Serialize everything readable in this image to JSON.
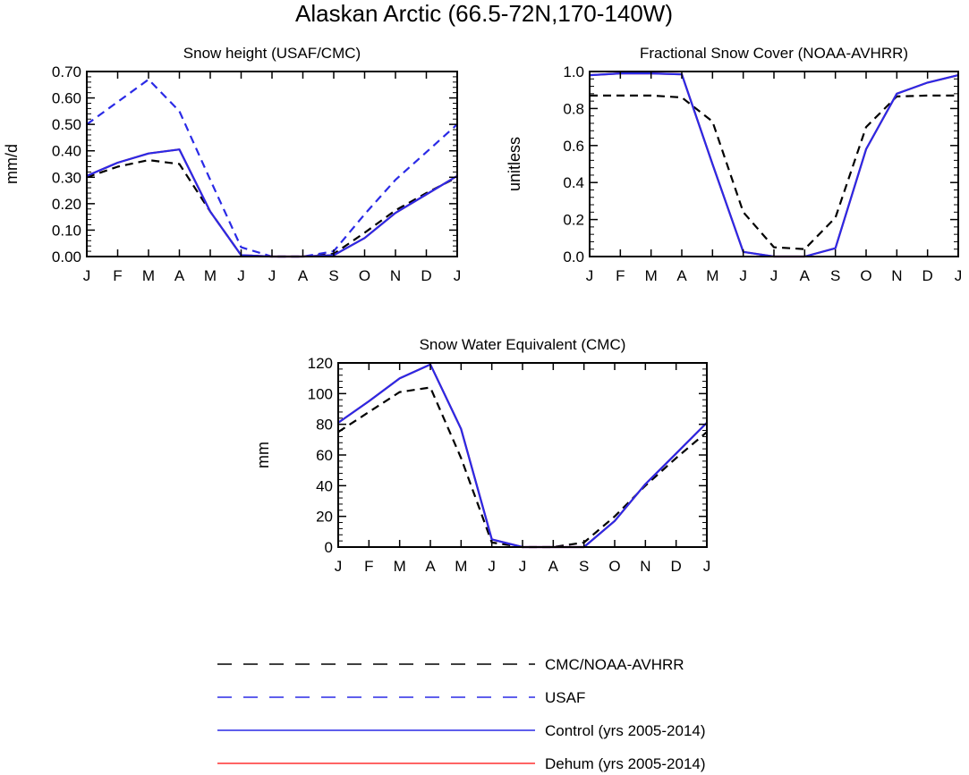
{
  "figure": {
    "title": "Alaskan Arctic (66.5-72N,170-140W)"
  },
  "chart_data": [
    {
      "type": "line",
      "title": "Snow height (USAF/CMC)",
      "ylabel": "mm/d",
      "categories": [
        "J",
        "F",
        "M",
        "A",
        "M",
        "J",
        "J",
        "A",
        "S",
        "O",
        "N",
        "D",
        "J"
      ],
      "ylim": [
        0,
        0.7
      ],
      "yticks": [
        0,
        0.1,
        0.2,
        0.3,
        0.4,
        0.5,
        0.6,
        0.7
      ],
      "ytick_labels": [
        "0.00",
        "0.10",
        "0.20",
        "0.30",
        "0.40",
        "0.50",
        "0.60",
        "0.70"
      ],
      "series": [
        {
          "name": "CMC/NOAA-AVHRR",
          "color": "#000000",
          "dash": true,
          "values": [
            0.3,
            0.34,
            0.365,
            0.35,
            0.17,
            0.005,
            0.0,
            0.0,
            0.01,
            0.09,
            0.175,
            0.24,
            0.3
          ]
        },
        {
          "name": "USAF",
          "color": "#2a2ae6",
          "dash": true,
          "values": [
            0.5,
            0.585,
            0.67,
            0.55,
            0.29,
            0.035,
            0.0,
            0.0,
            0.02,
            0.16,
            0.29,
            0.395,
            0.5
          ]
        },
        {
          "name": "Dehum (yrs 2005-2014)",
          "color": "#ff3030",
          "dash": false,
          "values": [
            0.305,
            0.355,
            0.39,
            0.405,
            0.17,
            0.005,
            0.0,
            0.0,
            0.005,
            0.07,
            0.165,
            0.235,
            0.305
          ]
        },
        {
          "name": "Control (yrs 2005-2014)",
          "color": "#2a2ae6",
          "dash": false,
          "values": [
            0.305,
            0.355,
            0.39,
            0.405,
            0.17,
            0.005,
            0.0,
            0.0,
            0.005,
            0.07,
            0.165,
            0.235,
            0.305
          ]
        }
      ]
    },
    {
      "type": "line",
      "title": "Fractional Snow Cover (NOAA-AVHRR)",
      "ylabel": "unitless",
      "categories": [
        "J",
        "F",
        "M",
        "A",
        "M",
        "J",
        "J",
        "A",
        "S",
        "O",
        "N",
        "D",
        "J"
      ],
      "ylim": [
        0,
        1.0
      ],
      "yticks": [
        0,
        0.2,
        0.4,
        0.6,
        0.8,
        1.0
      ],
      "ytick_labels": [
        "0.0",
        "0.2",
        "0.4",
        "0.6",
        "0.8",
        "1.0"
      ],
      "series": [
        {
          "name": "CMC/NOAA-AVHRR",
          "color": "#000000",
          "dash": true,
          "values": [
            0.87,
            0.87,
            0.87,
            0.86,
            0.73,
            0.24,
            0.05,
            0.04,
            0.21,
            0.7,
            0.865,
            0.87,
            0.87
          ]
        },
        {
          "name": "Dehum (yrs 2005-2014)",
          "color": "#ff3030",
          "dash": false,
          "values": [
            0.98,
            0.99,
            0.99,
            0.985,
            0.5,
            0.025,
            0.0,
            0.0,
            0.045,
            0.58,
            0.88,
            0.94,
            0.98
          ]
        },
        {
          "name": "Control (yrs 2005-2014)",
          "color": "#2a2ae6",
          "dash": false,
          "values": [
            0.98,
            0.99,
            0.99,
            0.985,
            0.5,
            0.025,
            0.0,
            0.0,
            0.045,
            0.58,
            0.88,
            0.94,
            0.98
          ]
        }
      ]
    },
    {
      "type": "line",
      "title": "Snow Water Equivalent (CMC)",
      "ylabel": "mm",
      "categories": [
        "J",
        "F",
        "M",
        "A",
        "M",
        "J",
        "J",
        "A",
        "S",
        "O",
        "N",
        "D",
        "J"
      ],
      "ylim": [
        0,
        120
      ],
      "yticks": [
        0,
        20,
        40,
        60,
        80,
        100,
        120
      ],
      "ytick_labels": [
        "0",
        "20",
        "40",
        "60",
        "80",
        "100",
        "120"
      ],
      "series": [
        {
          "name": "CMC/NOAA-AVHRR",
          "color": "#000000",
          "dash": true,
          "values": [
            75,
            88,
            101,
            104,
            58,
            3,
            0,
            0,
            3,
            20,
            40,
            58,
            75
          ]
        },
        {
          "name": "Dehum (yrs 2005-2014)",
          "color": "#ff3030",
          "dash": false,
          "values": [
            81,
            95,
            110,
            119,
            77,
            5,
            0,
            0,
            0,
            17,
            41,
            61,
            81
          ]
        },
        {
          "name": "Control (yrs 2005-2014)",
          "color": "#2a2ae6",
          "dash": false,
          "values": [
            81,
            95,
            110,
            119,
            77,
            5,
            0,
            0,
            0,
            17,
            41,
            61,
            81
          ]
        }
      ]
    }
  ],
  "legend": [
    {
      "label": "CMC/NOAA-AVHRR",
      "color": "#000000",
      "dash": true
    },
    {
      "label": "USAF",
      "color": "#2a2ae6",
      "dash": true
    },
    {
      "label": "Control (yrs 2005-2014)",
      "color": "#2a2ae6",
      "dash": false
    },
    {
      "label": "Dehum (yrs 2005-2014)",
      "color": "#ff3030",
      "dash": false
    }
  ]
}
